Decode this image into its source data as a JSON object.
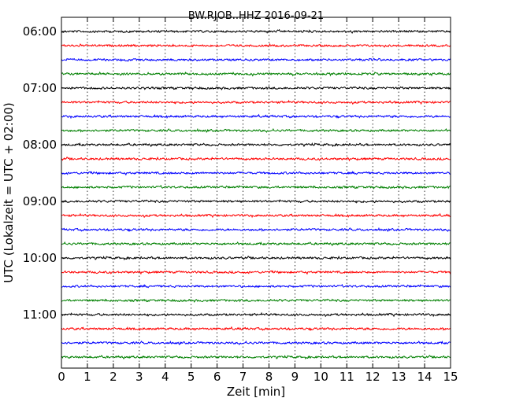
{
  "chart_data": {
    "type": "line",
    "title": "BW.RJOB..HHZ 2016-09-21",
    "xlabel": "Zeit  [min]",
    "ylabel": "UTC (Lokalzeit = UTC + 02:00)",
    "xlim": [
      0,
      15
    ],
    "x_ticks": [
      "0",
      "1",
      "2",
      "3",
      "4",
      "5",
      "6",
      "7",
      "8",
      "9",
      "10",
      "11",
      "12",
      "13",
      "14",
      "15"
    ],
    "y_tick_labels": [
      "06:00",
      "07:00",
      "08:00",
      "09:00",
      "10:00",
      "11:00"
    ],
    "y_ticks_at_trace_index": [
      0,
      4,
      8,
      12,
      16,
      20
    ],
    "traces_start": "06:00",
    "trace_interval_min": 15,
    "trace_count": 24,
    "trace_colors": [
      "#000000",
      "#ff0000",
      "#0000ff",
      "#008000"
    ],
    "grid": {
      "x_vertical_dotted": true
    },
    "series_note": "seismic waveform traces, one per 15-minute segment; amplitude is noise-level",
    "trace_baseline_starts": [
      "06:00",
      "06:15",
      "06:30",
      "06:45",
      "07:00",
      "07:15",
      "07:30",
      "07:45",
      "08:00",
      "08:15",
      "08:30",
      "08:45",
      "09:00",
      "09:15",
      "09:30",
      "09:45",
      "10:00",
      "10:15",
      "10:30",
      "10:45",
      "11:00",
      "11:15",
      "11:30",
      "11:45"
    ]
  }
}
